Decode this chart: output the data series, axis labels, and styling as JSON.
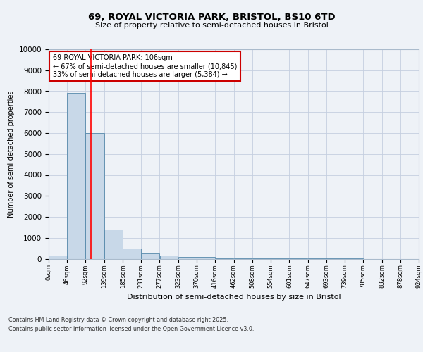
{
  "title": "69, ROYAL VICTORIA PARK, BRISTOL, BS10 6TD",
  "subtitle": "Size of property relative to semi-detached houses in Bristol",
  "xlabel": "Distribution of semi-detached houses by size in Bristol",
  "ylabel": "Number of semi-detached properties",
  "bar_values": [
    150,
    7900,
    6000,
    1400,
    500,
    250,
    150,
    100,
    75,
    30,
    15,
    8,
    5,
    3,
    2,
    1,
    1,
    0,
    0,
    0
  ],
  "bin_edges": [
    0,
    46,
    92,
    139,
    185,
    231,
    277,
    323,
    370,
    416,
    462,
    508,
    554,
    601,
    647,
    693,
    739,
    785,
    832,
    878,
    924
  ],
  "bar_color": "#c8d8e8",
  "bar_edge_color": "#5588aa",
  "red_line_x": 106,
  "annotation_text": "69 ROYAL VICTORIA PARK: 106sqm\n← 67% of semi-detached houses are smaller (10,845)\n33% of semi-detached houses are larger (5,384) →",
  "annotation_box_color": "#ffffff",
  "annotation_box_edge_color": "#cc0000",
  "ylim": [
    0,
    10000
  ],
  "yticks": [
    0,
    1000,
    2000,
    3000,
    4000,
    5000,
    6000,
    7000,
    8000,
    9000,
    10000
  ],
  "footer_line1": "Contains HM Land Registry data © Crown copyright and database right 2025.",
  "footer_line2": "Contains public sector information licensed under the Open Government Licence v3.0.",
  "bg_color": "#eef2f7",
  "grid_color": "#c5cfe0"
}
